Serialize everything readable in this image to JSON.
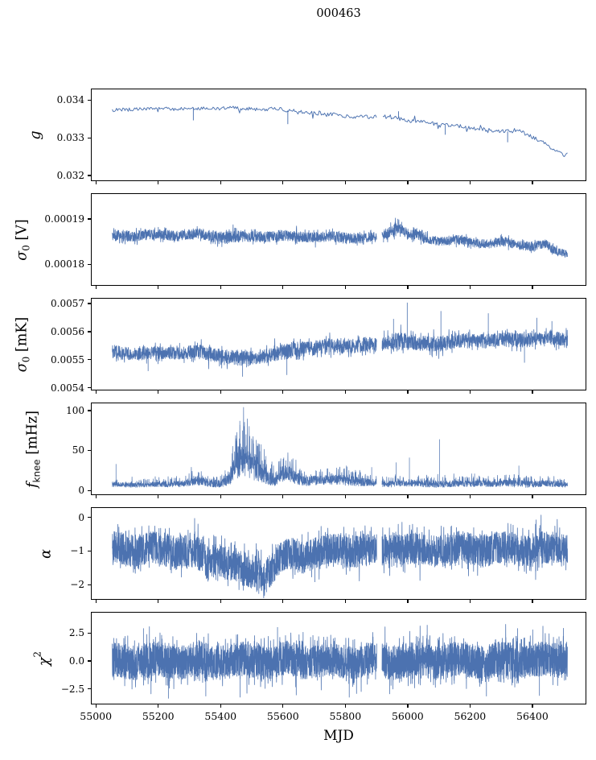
{
  "chart_data": {
    "type": "line",
    "layout": "6 vertically stacked subplots sharing one x-axis, no grid, no legend, black box spines, outward ticks",
    "title": "000463",
    "xlabel": "MJD",
    "x_ticks": [
      55000,
      55200,
      55400,
      55600,
      55800,
      56000,
      56200,
      56400
    ],
    "x_tick_labels": [
      "55000",
      "55200",
      "55400",
      "55600",
      "55800",
      "56000",
      "56200",
      "56400"
    ],
    "xlim": [
      54984,
      56573
    ],
    "x_data_range": [
      55050,
      56510
    ],
    "gap": [
      55898,
      55915
    ],
    "line_color": "#4C72B0",
    "background": "#ffffff",
    "panels": [
      {
        "id": "g",
        "ylabel": [
          {
            "t": "g",
            "s": "it"
          }
        ],
        "yticks": [
          {
            "v": 0.034,
            "label": "0.034"
          },
          {
            "v": 0.033,
            "label": "0.033"
          },
          {
            "v": 0.032,
            "label": "0.032"
          }
        ],
        "ylim": [
          0.03185,
          0.0343
        ],
        "style": "line",
        "points": 430,
        "envelope": [
          [
            55050,
            0.03374,
            5e-05
          ],
          [
            55150,
            0.03379,
            4e-05
          ],
          [
            55300,
            0.03379,
            4e-05
          ],
          [
            55430,
            0.03381,
            5e-05
          ],
          [
            55520,
            0.03377,
            4e-05
          ],
          [
            55580,
            0.03378,
            5e-05
          ],
          [
            55640,
            0.03371,
            6e-05
          ],
          [
            55720,
            0.03366,
            5e-05
          ],
          [
            55800,
            0.0336,
            5e-05
          ],
          [
            55880,
            0.03356,
            5e-05
          ],
          [
            55950,
            0.03358,
            6e-05
          ],
          [
            56000,
            0.03347,
            5e-05
          ],
          [
            56080,
            0.0334,
            5e-05
          ],
          [
            56160,
            0.03332,
            5e-05
          ],
          [
            56240,
            0.03325,
            5e-05
          ],
          [
            56310,
            0.03318,
            6e-05
          ],
          [
            56350,
            0.03322,
            6e-05
          ],
          [
            56420,
            0.03295,
            5e-05
          ],
          [
            56470,
            0.03268,
            4e-05
          ],
          [
            56500,
            0.03256,
            4e-05
          ],
          [
            56510,
            0.03264,
            3e-05
          ]
        ],
        "spikes": [
          [
            55310,
            0.03348
          ],
          [
            55613,
            0.03338
          ],
          [
            55968,
            0.03372
          ],
          [
            56118,
            0.0331
          ],
          [
            56318,
            0.0329
          ]
        ]
      },
      {
        "id": "sigma0_v",
        "ylabel": [
          {
            "t": "σ",
            "s": "it"
          },
          {
            "t": "0",
            "s": "sub"
          },
          {
            "t": " [V]",
            "s": "norm"
          }
        ],
        "yticks": [
          {
            "v": 0.00019,
            "label": "0.00019"
          },
          {
            "v": 0.00018,
            "label": "0.00018"
          }
        ],
        "ylim": [
          0.0001752,
          0.0001957
        ],
        "style": "band",
        "points": 2800,
        "envelope": [
          [
            55050,
            0.0001864,
            1.3e-06
          ],
          [
            55150,
            0.0001866,
            1.1e-06
          ],
          [
            55250,
            0.0001866,
            1.1e-06
          ],
          [
            55330,
            0.0001868,
            1.1e-06
          ],
          [
            55420,
            0.0001861,
            1.4e-06
          ],
          [
            55500,
            0.0001863,
            1.2e-06
          ],
          [
            55600,
            0.0001864,
            1.2e-06
          ],
          [
            55700,
            0.0001862,
            1.1e-06
          ],
          [
            55800,
            0.0001861,
            1.2e-06
          ],
          [
            55860,
            0.0001859,
            1.1e-06
          ],
          [
            55898,
            0.0001861,
            9e-07
          ],
          [
            55916,
            0.0001866,
            1e-06
          ],
          [
            55945,
            0.0001875,
            1.3e-06
          ],
          [
            55965,
            0.0001886,
            1.2e-06
          ],
          [
            55985,
            0.0001878,
            1.2e-06
          ],
          [
            56005,
            0.0001863,
            1.1e-06
          ],
          [
            56030,
            0.0001868,
            1.3e-06
          ],
          [
            56055,
            0.0001858,
            1e-06
          ],
          [
            56090,
            0.0001855,
            1e-06
          ],
          [
            56130,
            0.0001852,
            1e-06
          ],
          [
            56165,
            0.0001857,
            1.1e-06
          ],
          [
            56210,
            0.0001849,
            1e-06
          ],
          [
            56260,
            0.0001847,
            1e-06
          ],
          [
            56300,
            0.0001851,
            1.1e-06
          ],
          [
            56350,
            0.0001845,
            1e-06
          ],
          [
            56400,
            0.0001842,
            1e-06
          ],
          [
            56440,
            0.0001845,
            1e-06
          ],
          [
            56470,
            0.0001832,
            9e-07
          ],
          [
            56510,
            0.0001824,
            8e-07
          ]
        ],
        "spikes": [
          [
            55966,
            0.0001902
          ],
          [
            55957,
            0.0001895
          ],
          [
            55920,
            0.000185
          ],
          [
            56040,
            0.0001845
          ]
        ]
      },
      {
        "id": "sigma0_mk",
        "ylabel": [
          {
            "t": "σ",
            "s": "it"
          },
          {
            "t": "0",
            "s": "sub"
          },
          {
            "t": " [mK]",
            "s": "norm"
          }
        ],
        "yticks": [
          {
            "v": 0.0057,
            "label": "0.0057"
          },
          {
            "v": 0.0056,
            "label": "0.0056"
          },
          {
            "v": 0.0055,
            "label": "0.0055"
          },
          {
            "v": 0.0054,
            "label": "0.0054"
          }
        ],
        "ylim": [
          0.00539,
          0.00572
        ],
        "style": "band",
        "points": 2800,
        "envelope": [
          [
            55050,
            0.005528,
            2.4e-05
          ],
          [
            55150,
            0.005524,
            2.2e-05
          ],
          [
            55250,
            0.005529,
            2.3e-05
          ],
          [
            55340,
            0.005527,
            2.6e-05
          ],
          [
            55420,
            0.005512,
            2.8e-05
          ],
          [
            55465,
            0.005504,
            2.6e-05
          ],
          [
            55530,
            0.005516,
            2.4e-05
          ],
          [
            55600,
            0.005528,
            3e-05
          ],
          [
            55660,
            0.005543,
            2.6e-05
          ],
          [
            55730,
            0.005549,
            2.6e-05
          ],
          [
            55800,
            0.005553,
            2.6e-05
          ],
          [
            55870,
            0.005557,
            2.5e-05
          ],
          [
            55898,
            0.005554,
            2.2e-05
          ],
          [
            55916,
            0.005559,
            2.5e-05
          ],
          [
            55950,
            0.005572,
            3e-05
          ],
          [
            55990,
            0.005568,
            3.2e-05
          ],
          [
            56030,
            0.005558,
            2.6e-05
          ],
          [
            56100,
            0.005563,
            2.8e-05
          ],
          [
            56170,
            0.005568,
            2.6e-05
          ],
          [
            56240,
            0.005571,
            2.6e-05
          ],
          [
            56310,
            0.005571,
            2.6e-05
          ],
          [
            56380,
            0.005574,
            2.6e-05
          ],
          [
            56440,
            0.005578,
            2.5e-05
          ],
          [
            56510,
            0.005576,
            2.3e-05
          ]
        ],
        "spikes": [
          [
            55996,
            0.005706
          ],
          [
            55952,
            0.005648
          ],
          [
            56104,
            0.005676
          ],
          [
            56256,
            0.005668
          ],
          [
            56412,
            0.005652
          ],
          [
            55468,
            0.005442
          ],
          [
            55610,
            0.005448
          ],
          [
            56372,
            0.005492
          ],
          [
            55165,
            0.005462
          ],
          [
            56460,
            0.00564
          ]
        ]
      },
      {
        "id": "f_knee",
        "ylabel": [
          {
            "t": "f",
            "s": "it"
          },
          {
            "t": "knee",
            "s": "subsans"
          },
          {
            "t": " [mHz]",
            "s": "norm"
          }
        ],
        "yticks": [
          {
            "v": 100,
            "label": "100"
          },
          {
            "v": 50,
            "label": "50"
          },
          {
            "v": 0,
            "label": "0"
          }
        ],
        "ylim": [
          -6,
          110
        ],
        "style": "spiky",
        "points": 3000,
        "envelope": [
          [
            55050,
            8,
            3
          ],
          [
            55120,
            8,
            3
          ],
          [
            55210,
            8,
            3
          ],
          [
            55285,
            10,
            4
          ],
          [
            55315,
            13,
            6
          ],
          [
            55345,
            11,
            5
          ],
          [
            55385,
            9,
            4
          ],
          [
            55415,
            12,
            6
          ],
          [
            55435,
            24,
            14
          ],
          [
            55455,
            34,
            19
          ],
          [
            55475,
            37,
            21
          ],
          [
            55505,
            31,
            17
          ],
          [
            55535,
            26,
            14
          ],
          [
            55555,
            14,
            7
          ],
          [
            55575,
            12,
            6
          ],
          [
            55595,
            20,
            10
          ],
          [
            55615,
            21,
            10
          ],
          [
            55635,
            17,
            8
          ],
          [
            55665,
            13,
            6
          ],
          [
            55705,
            14,
            6
          ],
          [
            55745,
            13,
            6
          ],
          [
            55785,
            15,
            7
          ],
          [
            55825,
            13,
            6
          ],
          [
            55865,
            11,
            5
          ],
          [
            55898,
            9,
            4
          ],
          [
            55916,
            9,
            4
          ],
          [
            55985,
            10,
            4
          ],
          [
            56045,
            9,
            4
          ],
          [
            56105,
            9,
            4
          ],
          [
            56170,
            9,
            4
          ],
          [
            56230,
            10,
            4
          ],
          [
            56290,
            9,
            4
          ],
          [
            56345,
            10,
            5
          ],
          [
            56405,
            9,
            4
          ],
          [
            56465,
            9,
            4
          ],
          [
            56510,
            8,
            3
          ]
        ],
        "spikes": [
          [
            55062,
            34
          ],
          [
            55412,
            26
          ],
          [
            55447,
            66
          ],
          [
            55459,
            88
          ],
          [
            55468,
            76
          ],
          [
            55479,
            71
          ],
          [
            55491,
            69
          ],
          [
            55501,
            64
          ],
          [
            55513,
            57
          ],
          [
            55523,
            50
          ],
          [
            55543,
            44
          ],
          [
            55562,
            37
          ],
          [
            55600,
            42
          ],
          [
            55613,
            39
          ],
          [
            55652,
            28
          ],
          [
            55703,
            26
          ],
          [
            55747,
            24
          ],
          [
            55792,
            28
          ],
          [
            55882,
            30
          ],
          [
            55960,
            36
          ],
          [
            56003,
            42
          ],
          [
            56100,
            65
          ],
          [
            56212,
            22
          ],
          [
            56354,
            32
          ],
          [
            56452,
            17
          ]
        ]
      },
      {
        "id": "alpha",
        "ylabel": [
          {
            "t": "α",
            "s": "it"
          }
        ],
        "yticks": [
          {
            "v": 0,
            "label": "0"
          },
          {
            "v": -1,
            "label": "−1"
          },
          {
            "v": -2,
            "label": "−2"
          }
        ],
        "ylim": [
          -2.45,
          0.3
        ],
        "style": "band",
        "points": 3500,
        "envelope": [
          [
            55050,
            -0.92,
            0.5
          ],
          [
            55150,
            -0.92,
            0.47
          ],
          [
            55250,
            -0.95,
            0.5
          ],
          [
            55320,
            -1.05,
            0.52
          ],
          [
            55355,
            -1.3,
            0.5
          ],
          [
            55385,
            -1.15,
            0.48
          ],
          [
            55415,
            -1.28,
            0.52
          ],
          [
            55450,
            -1.52,
            0.52
          ],
          [
            55490,
            -1.58,
            0.52
          ],
          [
            55530,
            -1.62,
            0.5
          ],
          [
            55565,
            -1.48,
            0.5
          ],
          [
            55595,
            -1.22,
            0.48
          ],
          [
            55625,
            -1.08,
            0.47
          ],
          [
            55655,
            -1.18,
            0.48
          ],
          [
            55690,
            -1.02,
            0.46
          ],
          [
            55760,
            -0.95,
            0.46
          ],
          [
            55850,
            -0.95,
            0.48
          ],
          [
            55898,
            -0.95,
            0.42
          ],
          [
            55916,
            -0.93,
            0.48
          ],
          [
            56100,
            -0.92,
            0.48
          ],
          [
            56300,
            -0.92,
            0.48
          ],
          [
            56510,
            -0.92,
            0.48
          ]
        ],
        "spikes": [
          [
            55520,
            -2.25
          ],
          [
            55470,
            -2.15
          ],
          [
            55545,
            -2.2
          ],
          [
            55700,
            -1.9
          ],
          [
            55200,
            -0.3
          ],
          [
            56050,
            -0.25
          ],
          [
            56420,
            -0.3
          ]
        ]
      },
      {
        "id": "chi2",
        "ylabel": [
          {
            "t": "χ",
            "s": "it"
          },
          {
            "t": "2",
            "s": "sup"
          }
        ],
        "yticks": [
          {
            "v": 2.5,
            "label": "2.5"
          },
          {
            "v": 0.0,
            "label": "0.0"
          },
          {
            "v": -2.5,
            "label": "−2.5"
          }
        ],
        "ylim": [
          -3.9,
          4.4
        ],
        "style": "band",
        "points": 4500,
        "envelope": [
          [
            55050,
            0.1,
            1.55
          ],
          [
            55400,
            0.1,
            1.55
          ],
          [
            55700,
            0.1,
            1.55
          ],
          [
            55898,
            0.1,
            1.45
          ],
          [
            55916,
            0.1,
            1.55
          ],
          [
            56200,
            0.1,
            1.55
          ],
          [
            56510,
            0.1,
            1.55
          ]
        ],
        "spikes": [
          [
            55150,
            3.0
          ],
          [
            55230,
            -3.3
          ],
          [
            55350,
            -3.1
          ],
          [
            55460,
            -3.2
          ],
          [
            55580,
            3.1
          ],
          [
            55640,
            -3.0
          ],
          [
            55810,
            -3.2
          ],
          [
            55940,
            -2.9
          ],
          [
            56060,
            3.3
          ],
          [
            56250,
            -3.1
          ],
          [
            56350,
            3.0
          ],
          [
            56420,
            -3.05
          ]
        ]
      }
    ]
  }
}
